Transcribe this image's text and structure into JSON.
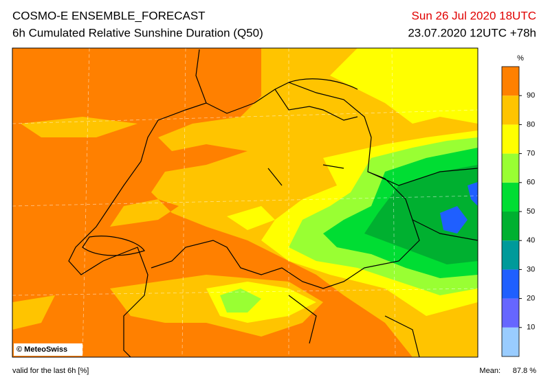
{
  "header": {
    "title": "COSMO-E ENSEMBLE_FORECAST",
    "subtitle": "6h Cumulated Relative Sunshine Duration (Q50)",
    "valid_time": "Sun 26 Jul 2020 18UTC",
    "run": "23.07.2020 12UTC +78h"
  },
  "legend": {
    "unit": "%",
    "lim": [
      0,
      100
    ],
    "levels": [
      10,
      20,
      30,
      40,
      50,
      60,
      70,
      80,
      90
    ],
    "colors": [
      "#99ccff",
      "#6666ff",
      "#1f5fff",
      "#009a9a",
      "#00b030",
      "#00dd33",
      "#99ff33",
      "#ffff00",
      "#ffc400",
      "#ff8000"
    ]
  },
  "map": {
    "credit": "© MeteoSwiss"
  },
  "footer": {
    "note": "valid for the last 6h [%]",
    "mean_label": "Mean:",
    "mean_value": "87.8 %"
  }
}
